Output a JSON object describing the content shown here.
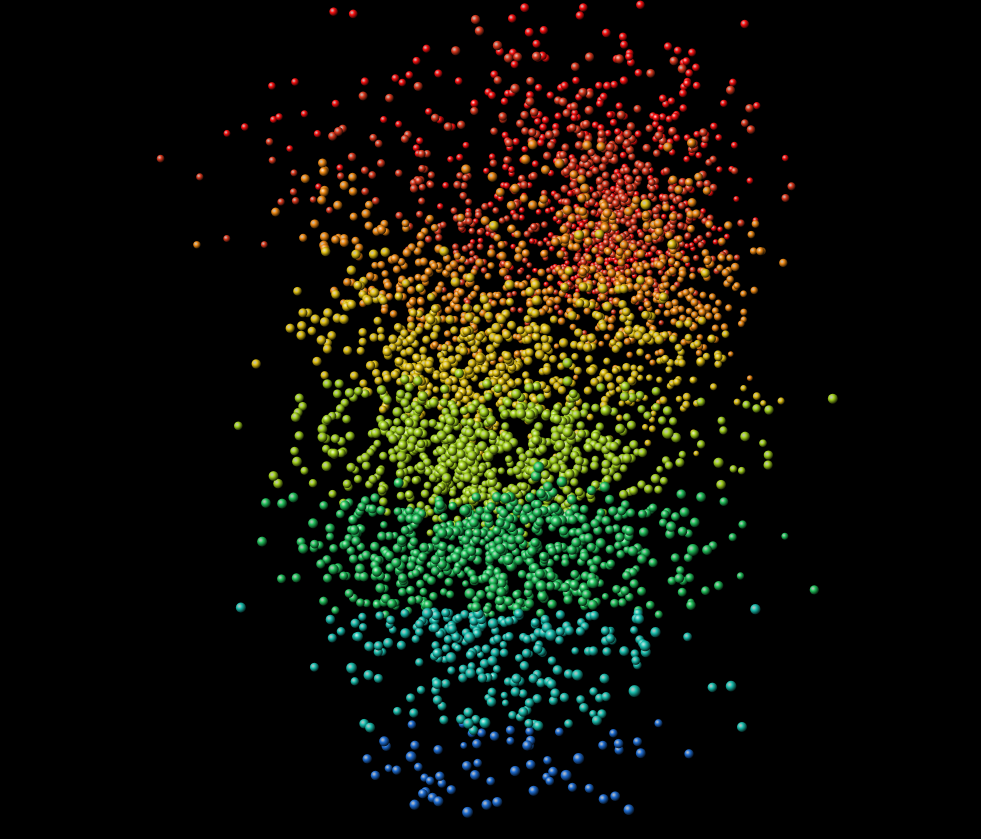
{
  "chart_data": {
    "type": "scatter",
    "title": "",
    "xlabel": "",
    "ylabel": "",
    "zlabel": "",
    "projection": "3d-perspective",
    "background": "#000000",
    "grid": false,
    "axes_visible": false,
    "legend": "none",
    "colormap": [
      "#1f6fd6",
      "#19c0b0",
      "#22c55e",
      "#a3d21c",
      "#e2c211",
      "#f08a12",
      "#e03a1e",
      "#ff1010"
    ],
    "color_encodes": "z",
    "marker": "sphere",
    "point_count_estimate": 4000,
    "clusters": [
      {
        "name": "",
        "x_center": 0.38,
        "y_center": 0.35,
        "z_center": 0.55,
        "spread": [
          0.05,
          0.2,
          0.2
        ],
        "count": 900
      },
      {
        "name": "",
        "x_center": 0.55,
        "y_center": 0.25,
        "z_center": 0.35,
        "spread": [
          0.12,
          0.1,
          0.15
        ],
        "count": 1500
      },
      {
        "name": "",
        "x_center": 0.68,
        "y_center": 0.42,
        "z_center": 0.8,
        "spread": [
          0.1,
          0.2,
          0.15
        ],
        "count": 1100
      },
      {
        "name": "",
        "x_center": 0.5,
        "y_center": 0.85,
        "z_center": 0.95,
        "spread": [
          0.1,
          0.2,
          0.05
        ],
        "count": 350
      },
      {
        "name": "",
        "x_center": 0.15,
        "y_center": 0.25,
        "z_center": 0.9,
        "spread": [
          0.1,
          0.08,
          0.1
        ],
        "count": 30
      }
    ]
  }
}
